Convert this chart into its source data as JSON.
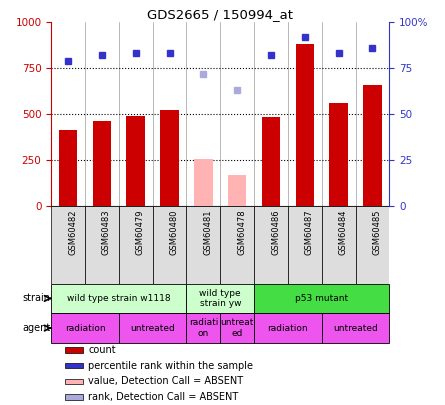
{
  "title": "GDS2665 / 150994_at",
  "samples": [
    "GSM60482",
    "GSM60483",
    "GSM60479",
    "GSM60480",
    "GSM60481",
    "GSM60478",
    "GSM60486",
    "GSM60487",
    "GSM60484",
    "GSM60485"
  ],
  "bar_values": [
    415,
    462,
    490,
    520,
    253,
    168,
    483,
    880,
    562,
    658
  ],
  "bar_colors": [
    "#cc0000",
    "#cc0000",
    "#cc0000",
    "#cc0000",
    "#ffb3b3",
    "#ffb3b3",
    "#cc0000",
    "#cc0000",
    "#cc0000",
    "#cc0000"
  ],
  "rank_values": [
    79,
    82,
    83,
    83,
    72,
    63,
    82,
    92,
    83,
    86
  ],
  "rank_colors": [
    "#3333cc",
    "#3333cc",
    "#3333cc",
    "#3333cc",
    "#aaaadd",
    "#aaaadd",
    "#3333cc",
    "#3333cc",
    "#3333cc",
    "#3333cc"
  ],
  "ylim_left": [
    0,
    1000
  ],
  "ylim_right": [
    0,
    100
  ],
  "yticks_left": [
    0,
    250,
    500,
    750,
    1000
  ],
  "yticks_right": [
    0,
    25,
    50,
    75,
    100
  ],
  "strain_groups": [
    {
      "label": "wild type strain w1118",
      "start": 0,
      "end": 4,
      "color": "#ccffcc"
    },
    {
      "label": "wild type\nstrain yw",
      "start": 4,
      "end": 6,
      "color": "#ccffcc"
    },
    {
      "label": "p53 mutant",
      "start": 6,
      "end": 10,
      "color": "#44dd44"
    }
  ],
  "agent_groups": [
    {
      "label": "radiation",
      "start": 0,
      "end": 2,
      "color": "#ee55ee"
    },
    {
      "label": "untreated",
      "start": 2,
      "end": 4,
      "color": "#ee55ee"
    },
    {
      "label": "radiati\non",
      "start": 4,
      "end": 5,
      "color": "#ee55ee"
    },
    {
      "label": "untreat\ned",
      "start": 5,
      "end": 6,
      "color": "#ee55ee"
    },
    {
      "label": "radiation",
      "start": 6,
      "end": 8,
      "color": "#ee55ee"
    },
    {
      "label": "untreated",
      "start": 8,
      "end": 10,
      "color": "#ee55ee"
    }
  ],
  "legend_items": [
    {
      "color": "#cc0000",
      "label": "count"
    },
    {
      "color": "#3333cc",
      "label": "percentile rank within the sample"
    },
    {
      "color": "#ffb3b3",
      "label": "value, Detection Call = ABSENT"
    },
    {
      "color": "#aaaadd",
      "label": "rank, Detection Call = ABSENT"
    }
  ],
  "bg_color": "#ffffff",
  "left_axis_color": "#cc0000",
  "right_axis_color": "#3333cc",
  "tick_bg_color": "#dddddd"
}
